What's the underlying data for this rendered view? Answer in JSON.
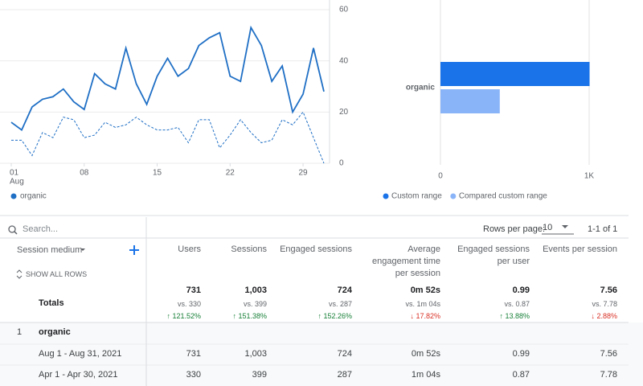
{
  "chart_data": [
    {
      "type": "line",
      "x": [
        1,
        2,
        3,
        4,
        5,
        6,
        7,
        8,
        9,
        10,
        11,
        12,
        13,
        14,
        15,
        16,
        17,
        18,
        19,
        20,
        21,
        22,
        23,
        24,
        25,
        26,
        27,
        28,
        29,
        30,
        31
      ],
      "xlim": [
        1,
        31
      ],
      "xticks": [
        {
          "value": 1,
          "label": "01"
        },
        {
          "value": 8,
          "label": "08"
        },
        {
          "value": 15,
          "label": "15"
        },
        {
          "value": 22,
          "label": "22"
        },
        {
          "value": 29,
          "label": "29"
        }
      ],
      "x_month": "Aug",
      "ylim": [
        0,
        60
      ],
      "yticks": [
        0,
        20,
        40,
        60
      ],
      "grid": true,
      "series": [
        {
          "name": "organic",
          "color": "#1f6fc5",
          "dashed": false,
          "values": [
            16,
            13,
            22,
            25,
            26,
            29,
            24,
            21,
            35,
            31,
            29,
            45,
            31,
            23,
            34,
            41,
            34,
            37,
            46,
            49,
            51,
            34,
            32,
            53,
            46,
            32,
            38,
            20,
            27,
            45,
            28
          ]
        },
        {
          "color": "#1f6fc5",
          "dashed": true,
          "values": [
            9,
            9,
            3,
            12,
            10,
            18,
            17,
            10,
            11,
            16,
            14,
            15,
            18,
            15,
            13,
            13,
            14,
            8,
            17,
            17,
            6,
            11,
            17,
            12,
            8,
            9,
            17,
            15,
            20,
            10,
            0
          ]
        }
      ]
    },
    {
      "type": "hbar",
      "categories": [
        "organic"
      ],
      "xlim": [
        0,
        1000
      ],
      "xticks": [
        0,
        {
          "value": 1000,
          "label": "1K"
        }
      ],
      "series": [
        {
          "name": "Custom range",
          "color": "#1a73e8",
          "values": [
            1003
          ]
        },
        {
          "name": "Compared custom range",
          "color": "#8ab4f8",
          "values": [
            399
          ]
        }
      ]
    }
  ],
  "table": {
    "search_placeholder": "Search...",
    "rows_per_page_label": "Rows per page:",
    "rows_per_page": "10",
    "pagination": "1-1 of 1",
    "dimension_header": "Session medium",
    "show_all_rows": "SHOW ALL ROWS",
    "columns": [
      "Users",
      "Sessions",
      "Engaged sessions",
      "Average engagement time per session",
      "Engaged sessions per user",
      "Events per session"
    ],
    "totals": {
      "label": "Totals",
      "values": [
        "731",
        "1,003",
        "724",
        "0m 52s",
        "0.99",
        "7.56"
      ],
      "compare": [
        "vs. 330",
        "vs. 399",
        "vs. 287",
        "vs. 1m 04s",
        "vs. 0.87",
        "vs. 7.78"
      ],
      "change": [
        "↑ 121.52%",
        "↑ 151.38%",
        "↑ 152.26%",
        "↓ 17.82%",
        "↑ 13.88%",
        "↓ 2.88%"
      ]
    },
    "rows": [
      {
        "index": "1",
        "name": "organic",
        "subrows": [
          {
            "label": "Aug 1 - Aug 31, 2021",
            "values": [
              "731",
              "1,003",
              "724",
              "0m 52s",
              "0.99",
              "7.56"
            ]
          },
          {
            "label": "Apr 1 - Apr 30, 2021",
            "values": [
              "330",
              "399",
              "287",
              "1m 04s",
              "0.87",
              "7.78"
            ]
          }
        ]
      }
    ]
  }
}
